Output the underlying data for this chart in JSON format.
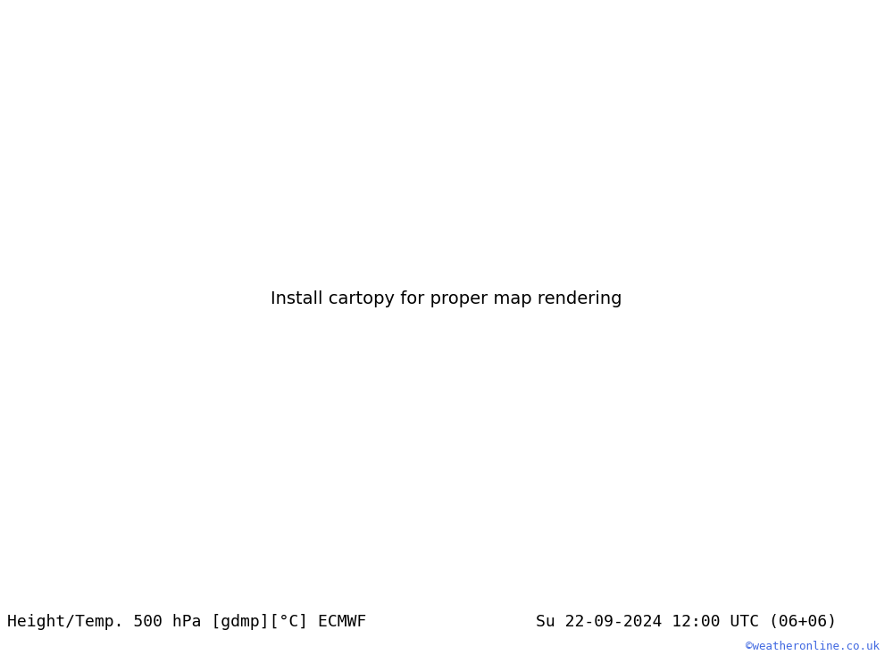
{
  "title_left": "Height/Temp. 500 hPa [gdmp][°C] ECMWF",
  "title_right": "Su 22-09-2024 12:00 UTC (06+06)",
  "watermark": "©weatheronline.co.uk",
  "land_color": "#c8e6a0",
  "mountain_color": "#b8b8b8",
  "sea_color": "#e0e0e0",
  "footer_bg": "#ffffff",
  "footer_text_color": "#000000",
  "watermark_color": "#4169e1",
  "height_color": "#000000",
  "temp_orange_color": "#ff8c00",
  "temp_cyan_color": "#00bcd4",
  "temp_green_color": "#7dc900",
  "temp_red_color": "#dd0000",
  "title_fontsize": 13,
  "watermark_fontsize": 9,
  "fig_width": 10.0,
  "fig_height": 7.33,
  "dpi": 100,
  "lon_min": -45,
  "lon_max": 55,
  "lat_min": 25,
  "lat_max": 75
}
